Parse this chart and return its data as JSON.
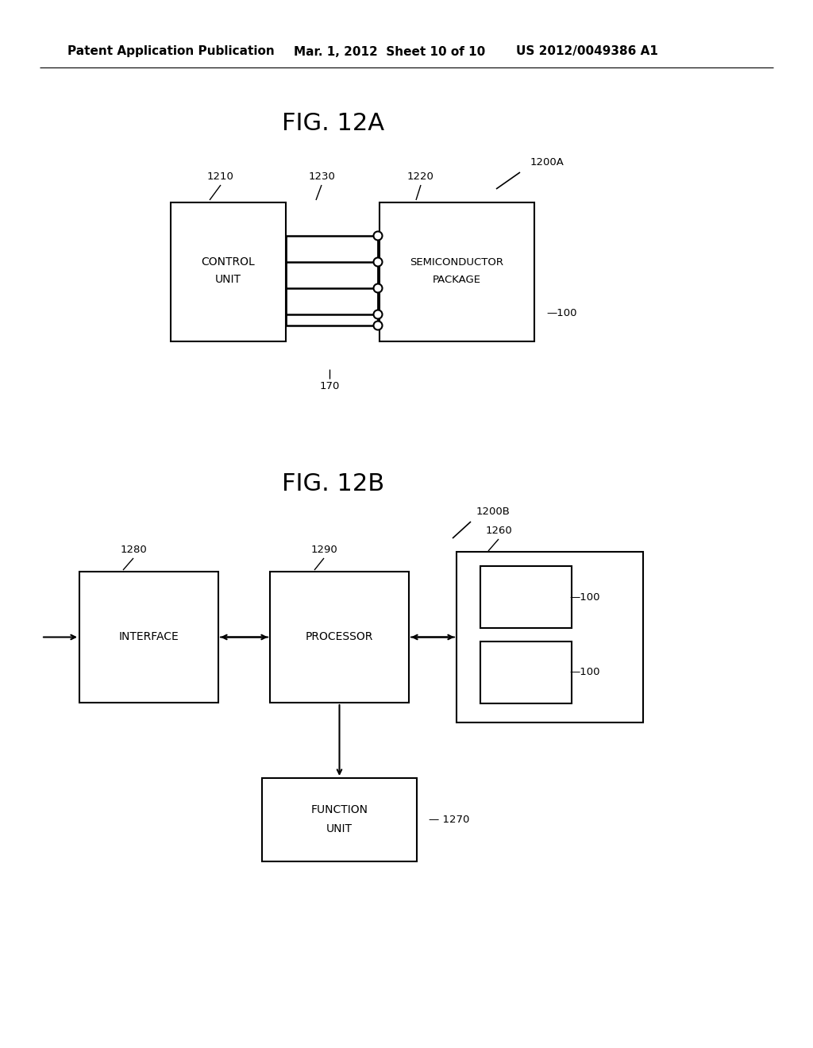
{
  "bg_color": "#ffffff",
  "header_text": "Patent Application Publication",
  "header_date": "Mar. 1, 2012  Sheet 10 of 10",
  "header_patent": "US 2012/0049386 A1",
  "fig12a_title": "FIG. 12A",
  "fig12b_title": "FIG. 12B"
}
